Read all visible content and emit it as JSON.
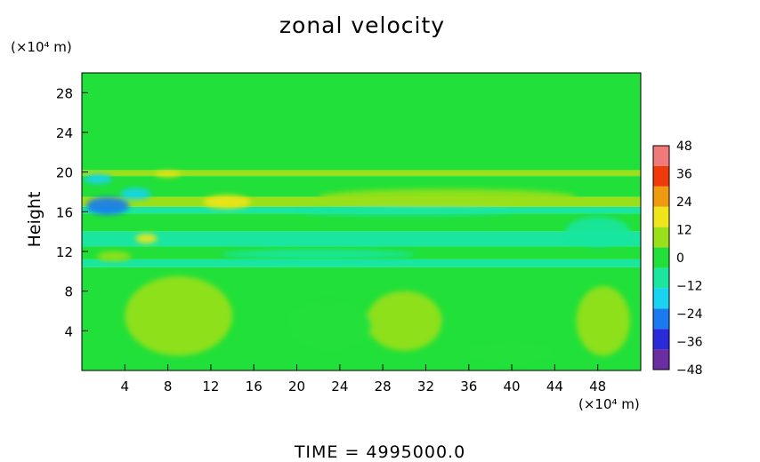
{
  "chart_data": {
    "type": "heatmap",
    "title": "zonal velocity",
    "ylabel": "Height",
    "xunit": "(×10⁴ m)",
    "yunit": "(×10⁴ m)",
    "xlim": [
      0,
      52
    ],
    "ylim": [
      0,
      30
    ],
    "xticks": [
      4,
      8,
      12,
      16,
      20,
      24,
      28,
      32,
      36,
      40,
      44,
      48
    ],
    "yticks": [
      4,
      8,
      12,
      16,
      20,
      24,
      28
    ],
    "colorbar": {
      "ticks": [
        48,
        36,
        24,
        12,
        0,
        -12,
        -24,
        -36,
        -48
      ],
      "range": [
        -48,
        48
      ],
      "colors": [
        "#6a2ea0",
        "#2a2ad8",
        "#1a7af0",
        "#19d4f0",
        "#1ae6a0",
        "#22e03a",
        "#9ae01a",
        "#f0e41a",
        "#f09a10",
        "#f03a0a",
        "#f07a7a"
      ]
    },
    "field_bands": [
      {
        "y0": 20.2,
        "y1": 30,
        "value": 3
      },
      {
        "y0": 19.6,
        "y1": 20.2,
        "value": 9
      },
      {
        "y0": 17.5,
        "y1": 19.6,
        "value": 3
      },
      {
        "y0": 16.5,
        "y1": 17.5,
        "value": 11
      },
      {
        "y0": 15.8,
        "y1": 16.5,
        "value": -5
      },
      {
        "y0": 14.0,
        "y1": 15.8,
        "value": -3
      },
      {
        "y0": 12.5,
        "y1": 14.0,
        "value": -8
      },
      {
        "y0": 11.2,
        "y1": 12.5,
        "value": -3
      },
      {
        "y0": 10.4,
        "y1": 11.2,
        "value": -10
      },
      {
        "y0": 0,
        "y1": 10.4,
        "value": 1
      }
    ],
    "features": [
      {
        "x": 2.4,
        "y": 16.6,
        "rx": 2.0,
        "ry": 0.9,
        "value": -28
      },
      {
        "x": 5.0,
        "y": 17.8,
        "rx": 1.4,
        "ry": 0.6,
        "value": -18
      },
      {
        "x": 1.5,
        "y": 19.3,
        "rx": 1.3,
        "ry": 0.5,
        "value": -14
      },
      {
        "x": 13.5,
        "y": 17.0,
        "rx": 2.2,
        "ry": 0.7,
        "value": 20
      },
      {
        "x": 8.0,
        "y": 19.8,
        "rx": 1.2,
        "ry": 0.3,
        "value": 16
      },
      {
        "x": 6.0,
        "y": 13.3,
        "rx": 1.0,
        "ry": 0.5,
        "value": 16
      },
      {
        "x": 3.0,
        "y": 11.5,
        "rx": 1.6,
        "ry": 0.5,
        "value": 8
      },
      {
        "x": 34.0,
        "y": 17.5,
        "rx": 12.0,
        "ry": 0.8,
        "value": 8
      },
      {
        "x": 30.0,
        "y": 16.0,
        "rx": 10.0,
        "ry": 0.4,
        "value": -8
      },
      {
        "x": 22.0,
        "y": 11.7,
        "rx": 9.0,
        "ry": 0.5,
        "value": -12
      },
      {
        "x": 30.0,
        "y": 5.0,
        "rx": 3.5,
        "ry": 3.0,
        "value": 7
      },
      {
        "x": 9.0,
        "y": 5.5,
        "rx": 5.0,
        "ry": 4.0,
        "value": 5
      },
      {
        "x": 48.5,
        "y": 5.0,
        "rx": 2.5,
        "ry": 3.5,
        "value": 6
      },
      {
        "x": 23.0,
        "y": 4.5,
        "rx": 4.0,
        "ry": 2.5,
        "value": -2
      },
      {
        "x": 40.0,
        "y": 1.8,
        "rx": 4.0,
        "ry": 1.2,
        "value": -2
      },
      {
        "x": 48.0,
        "y": 14.0,
        "rx": 3.0,
        "ry": 1.5,
        "value": -8
      }
    ]
  },
  "footer": {
    "label": "TIME  =  4995000.0"
  }
}
